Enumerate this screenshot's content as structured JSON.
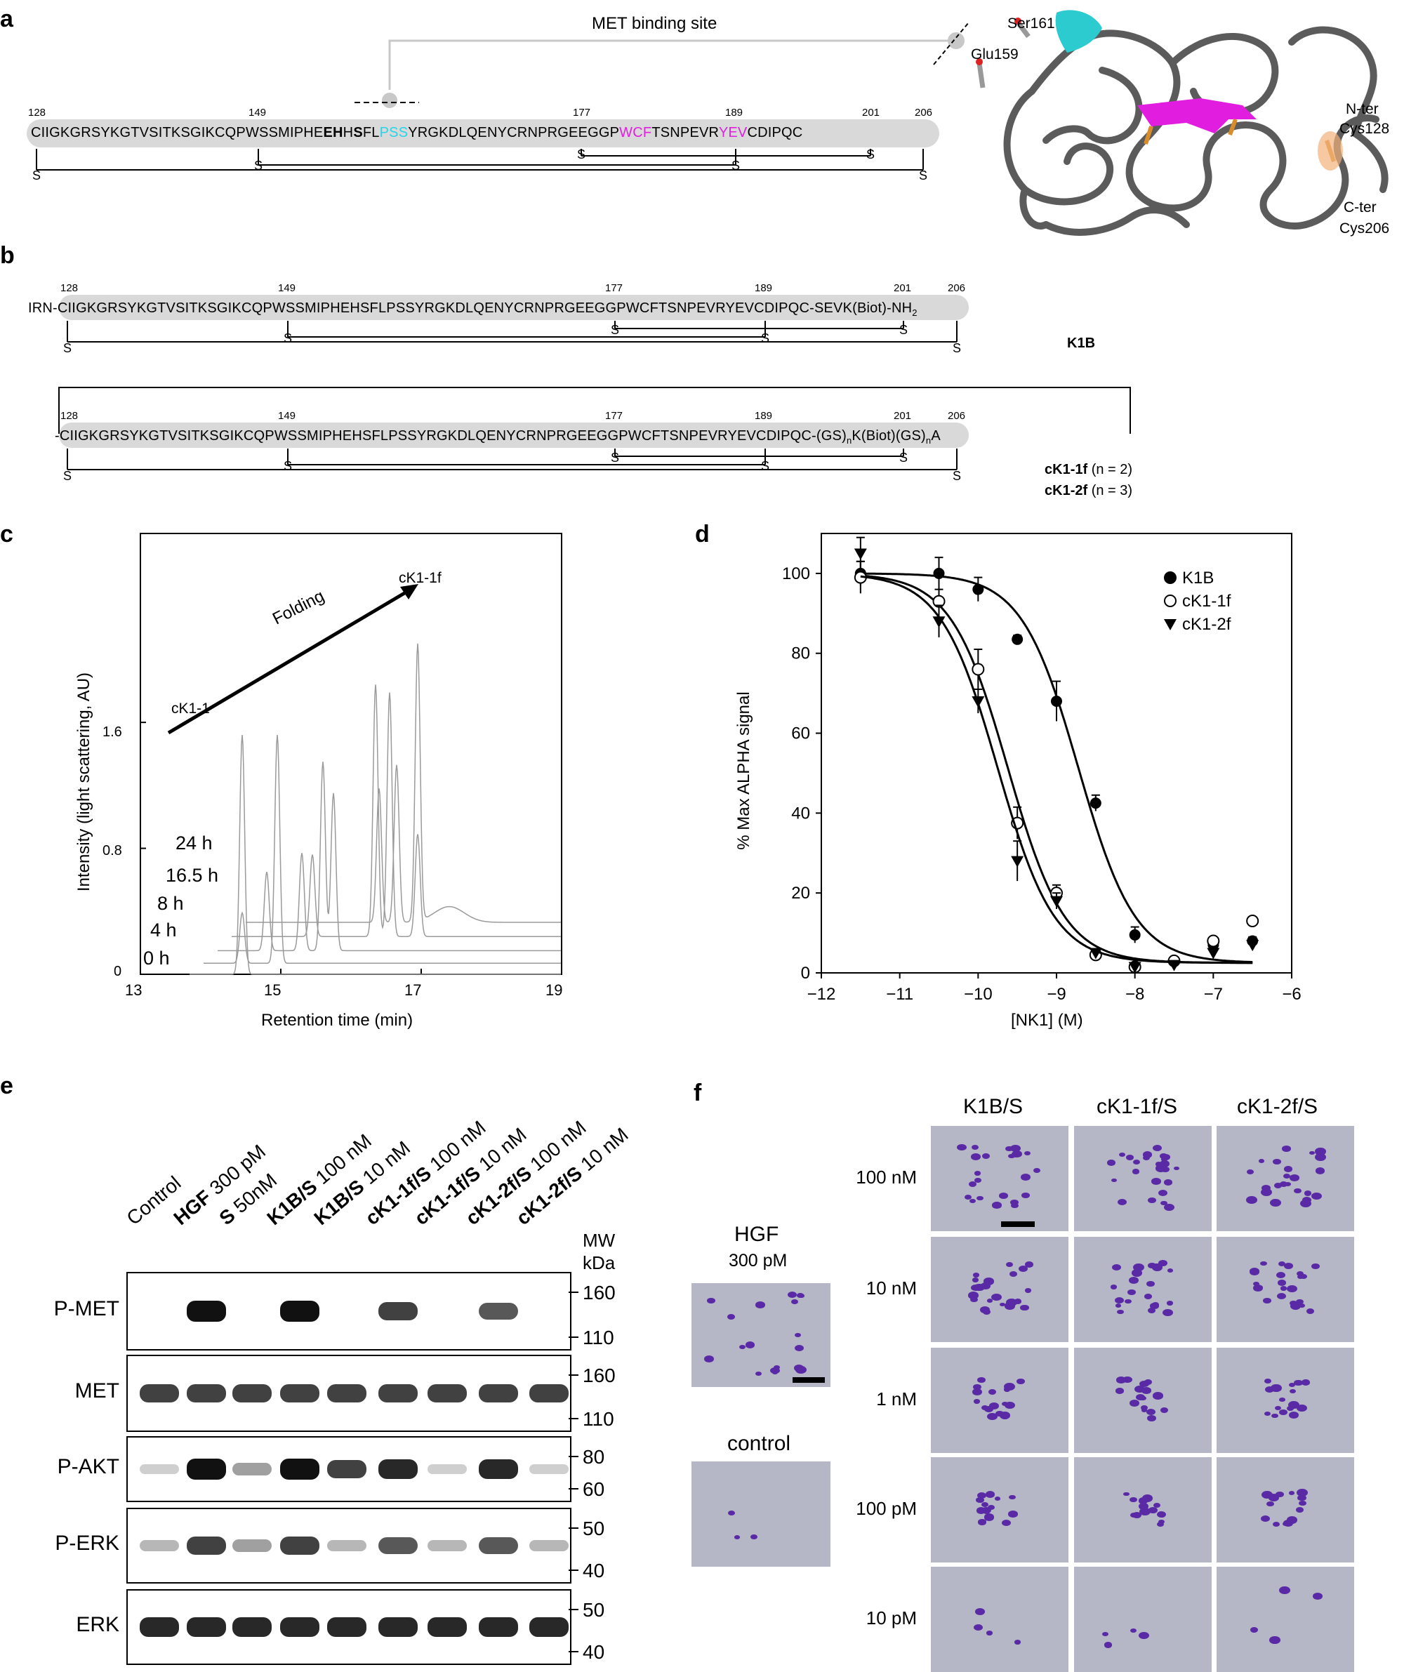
{
  "panels": {
    "a": "a",
    "b": "b",
    "c": "c",
    "d": "d",
    "e": "e",
    "f": "f"
  },
  "panel_a": {
    "met_binding_site": "MET binding site",
    "numbers": [
      "128",
      "149",
      "177",
      "189",
      "201",
      "206"
    ],
    "seq_part1": "CIIGKGRSYKGTVSITKSGIKCQPWSSMIPHE",
    "seq_bold1": "EH",
    "seq_bold2": "S",
    "seq_part2": "FL",
    "seq_cyan": "PSS",
    "seq_part3": "YRGKDLQENYCRNPRGEEGGP",
    "seq_magenta1": "WCF",
    "seq_part4": "TSNPEVR",
    "seq_magenta2": "YEV",
    "seq_part5": "CDIPQC",
    "s_label": "S",
    "structure_labels": {
      "ser161": "Ser161",
      "glu159": "Glu159",
      "nter": "N-ter",
      "cys128": "Cys128",
      "cter": "C-ter",
      "cys206": "Cys206"
    }
  },
  "panel_b": {
    "k1b_prefix": "IRN",
    "k1b_seq": "-CIIGKGRSYKGTVSITKSGIKCQPWSSMIPHEHSFLPSSYRGKDLQENYCRNPRGEEGGPWCFTSNPEVRYEVCDIPQC",
    "k1b_suffix": "-SEVK(Biot)-NH",
    "k1b_suffix_sub": "2",
    "k1b_name": "K1B",
    "ck1_seq": "-CIIGKGRSYKGTVSITKSGIKCQPWSSMIPHEHSFLPSSYRGKDLQENYCRNPRGEEGGPWCFTSNPEVRYEVCDIPQC",
    "ck1_suffix_a": "-(GS)",
    "ck1_suffix_b": "K(Biot)(GS)",
    "ck1_suffix_c": "A",
    "sub_n": "n",
    "ck1f_name": "cK1-1f",
    "ck1f_n": "(n = 2)",
    "ck2f_name": "cK1-2f",
    "ck2f_n": "(n = 3)"
  },
  "panel_c": {
    "ylabel": "Intensity (light scattering, AU)",
    "xlabel": "Retention time (min)",
    "xticks": [
      "13",
      "15",
      "17",
      "19"
    ],
    "yticks": [
      "0",
      "0.8",
      "1.6"
    ],
    "folding": "Folding",
    "start_label": "cK1-1",
    "end_label": "cK1-1f",
    "traces": [
      "0 h",
      "4 h",
      "8 h",
      "16.5 h",
      "24 h"
    ]
  },
  "chart_data": [
    {
      "type": "line",
      "title": "",
      "xlabel": "Retention time (min)",
      "ylabel": "Intensity (light scattering, AU)",
      "xlim": [
        13,
        19
      ],
      "ylim": [
        0,
        2.8
      ],
      "series": [
        {
          "name": "0 h",
          "offset": 0.0,
          "peaks": [
            [
              14.45,
              1.52
            ]
          ]
        },
        {
          "name": "4 h",
          "offset": 0.07,
          "peaks": [
            [
              14.45,
              0.32
            ],
            [
              14.95,
              1.45
            ]
          ]
        },
        {
          "name": "8 h",
          "offset": 0.15,
          "peaks": [
            [
              14.8,
              0.5
            ],
            [
              15.3,
              0.62
            ],
            [
              15.6,
              1.2
            ],
            [
              15.75,
              1.0
            ]
          ]
        },
        {
          "name": "16.5 h",
          "offset": 0.24,
          "peaks": [
            [
              15.45,
              0.52
            ],
            [
              16.35,
              1.6
            ],
            [
              16.55,
              1.55
            ],
            [
              16.95,
              0.65
            ]
          ]
        },
        {
          "name": "24 h",
          "offset": 0.33,
          "peaks": [
            [
              16.4,
              0.85
            ],
            [
              16.65,
              1.0
            ],
            [
              16.95,
              1.76
            ]
          ]
        }
      ]
    },
    {
      "type": "scatter",
      "title": "",
      "xlabel": "[NK1] (M)",
      "ylabel": "% Max ALPHA signal",
      "xlim": [
        -12,
        -6
      ],
      "ylim": [
        0,
        110
      ],
      "xticks": [
        "−12",
        "−11",
        "−10",
        "−9",
        "−8",
        "−7",
        "−6"
      ],
      "yticks": [
        "0",
        "20",
        "40",
        "60",
        "80",
        "100"
      ],
      "legend": "top-right",
      "series": [
        {
          "name": "K1B",
          "marker": "filled-circle",
          "x": [
            -11.5,
            -10.5,
            -10,
            -9.5,
            -9,
            -8.5,
            -8,
            -7.5,
            -7,
            -6.5
          ],
          "y": [
            100,
            100,
            96,
            83.5,
            68,
            42.5,
            9.5,
            3,
            7,
            8
          ],
          "err": [
            3,
            4,
            3,
            1,
            5,
            2,
            2,
            1,
            1,
            1
          ],
          "ic50_log": -8.72
        },
        {
          "name": "cK1-1f",
          "marker": "open-circle",
          "x": [
            -11.5,
            -10.5,
            -10,
            -9.5,
            -9,
            -8.5,
            -8,
            -7.5,
            -7,
            -6.5
          ],
          "y": [
            99,
            93,
            76,
            37.5,
            20,
            4.5,
            1.5,
            3,
            8,
            13
          ],
          "err": [
            4,
            3,
            5,
            4,
            2,
            1,
            1,
            1,
            1,
            1
          ],
          "ic50_log": -9.62
        },
        {
          "name": "cK1-2f",
          "marker": "filled-triangle",
          "x": [
            -11.5,
            -10.5,
            -10,
            -9.5,
            -9,
            -8.5,
            -8,
            -7.5,
            -7,
            -6.5
          ],
          "y": [
            105,
            88,
            68,
            28,
            18,
            5,
            1.5,
            2,
            5,
            7
          ],
          "err": [
            4,
            4,
            3,
            5,
            2,
            1,
            1,
            1,
            1,
            1
          ],
          "ic50_log": -9.75
        }
      ]
    }
  ],
  "panel_d": {
    "ylabel": "% Max ALPHA signal",
    "xlabel": "[NK1] (M)",
    "legend": [
      "K1B",
      "cK1-1f",
      "cK1-2f"
    ]
  },
  "panel_e": {
    "lanes": [
      {
        "bold": "",
        "rest": "Control"
      },
      {
        "bold": "HGF",
        "rest": " 300 pM"
      },
      {
        "bold": "S",
        "rest": " 50nM"
      },
      {
        "bold": "K1B/S",
        "rest": " 100 nM"
      },
      {
        "bold": "K1B/S",
        "rest": " 10 nM"
      },
      {
        "bold": "cK1-1f/S",
        "rest": " 100 nM"
      },
      {
        "bold": "cK1-1f/S",
        "rest": " 10 nM"
      },
      {
        "bold": "cK1-2f/S",
        "rest": " 100 nM"
      },
      {
        "bold": "cK1-2f/S",
        "rest": " 10 nM"
      }
    ],
    "mw_title1": "MW",
    "mw_title2": "kDa",
    "blots": [
      {
        "name": "P-MET",
        "mw": [
          "160",
          "110"
        ]
      },
      {
        "name": "MET",
        "mw": [
          "160",
          "110"
        ]
      },
      {
        "name": "P-AKT",
        "mw": [
          "80",
          "60"
        ]
      },
      {
        "name": "P-ERK",
        "mw": [
          "50",
          "40"
        ]
      },
      {
        "name": "ERK",
        "mw": [
          "50",
          "40"
        ]
      }
    ]
  },
  "panel_f": {
    "hgf_title": "HGF",
    "hgf_conc": "300 pM",
    "control_title": "control",
    "columns": [
      "K1B/S",
      "cK1-1f/S",
      "cK1-2f/S"
    ],
    "rows": [
      "100 nM",
      "10 nM",
      "1 nM",
      "100 pM",
      "10 pM"
    ]
  }
}
